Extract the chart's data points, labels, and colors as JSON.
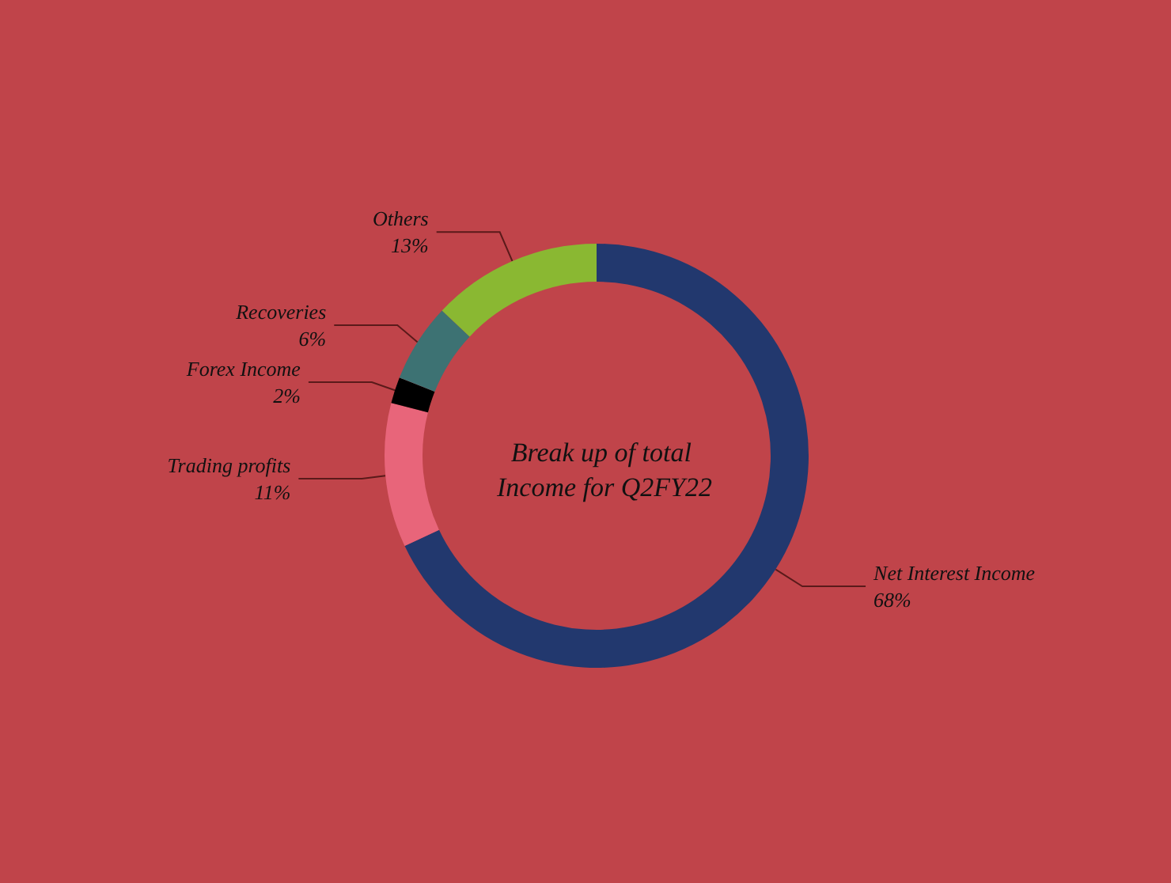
{
  "chart_data": {
    "type": "donut",
    "title": "Break up of total Income for Q2FY22",
    "categories": [
      "Net Interest Income",
      "Trading profits",
      "Forex Income",
      "Recoveries",
      "Others"
    ],
    "values": [
      68,
      11,
      2,
      6,
      13
    ],
    "value_labels": [
      "68%",
      "11%",
      "2%",
      "6%",
      "13%"
    ],
    "colors": [
      "#22386e",
      "#e8657a",
      "#000000",
      "#3d7273",
      "#8ab832"
    ],
    "legend": false
  }
}
